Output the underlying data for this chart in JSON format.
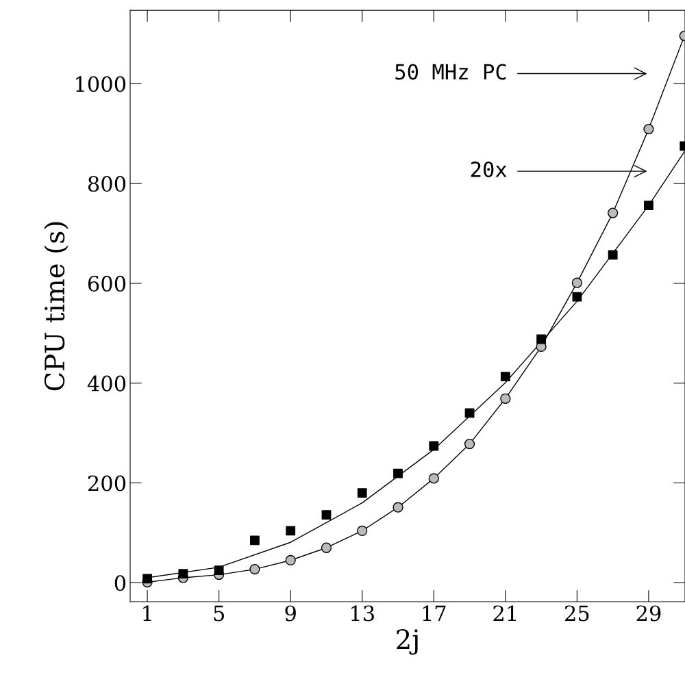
{
  "chart_data": {
    "type": "line",
    "xlabel": "2j",
    "ylabel": "CPU time (s)",
    "xlim": [
      0.04,
      31.03
    ],
    "ylim": [
      -38,
      1147
    ],
    "xticks": [
      1,
      5,
      9,
      13,
      17,
      21,
      25,
      29
    ],
    "yticks": [
      0,
      200,
      400,
      600,
      800,
      1000
    ],
    "grid": false,
    "legend": false,
    "series": [
      {
        "marker": "circle",
        "color": "#000000",
        "x": [
          1,
          3,
          5,
          7,
          9,
          11,
          13,
          15,
          17,
          19,
          21,
          23,
          25,
          27,
          29,
          31
        ],
        "values": [
          1,
          10,
          16,
          27,
          45,
          70,
          104,
          151,
          209,
          278,
          369,
          473,
          601,
          741,
          909,
          1096
        ]
      },
      {
        "type": "scatter",
        "marker": "square",
        "color": "#000000",
        "x": [
          1,
          3,
          5,
          7,
          9,
          11,
          13,
          15,
          17,
          19,
          21,
          23,
          25,
          27,
          29,
          31
        ],
        "values": [
          8,
          18,
          25,
          85,
          104,
          136,
          180,
          219,
          274,
          340,
          413,
          488,
          573,
          657,
          756,
          875
        ]
      },
      {
        "marker": "none",
        "color": "#000000",
        "x": [
          1,
          5,
          9,
          13,
          17,
          21,
          25,
          29,
          31
        ],
        "values": [
          10,
          31,
          81,
          160,
          267,
          401,
          564,
          756,
          864
        ]
      }
    ],
    "annotations": [
      "50 MHz PC",
      "20x"
    ]
  }
}
